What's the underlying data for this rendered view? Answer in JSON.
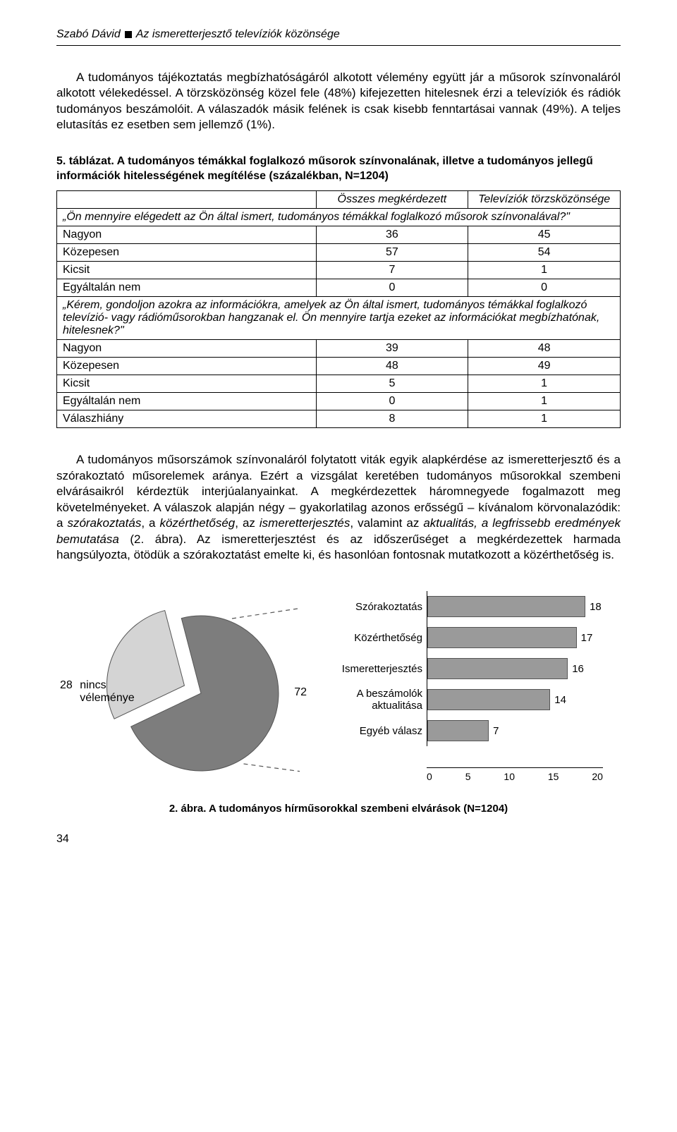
{
  "header": {
    "author": "Szabó Dávid",
    "title": "Az ismeretterjesztő televíziók közönsége"
  },
  "para1": "A tudományos tájékoztatás megbízhatóságáról alkotott vélemény együtt jár a műsorok színvonaláról alkotott vélekedéssel. A törzsközönség közel fele (48%) kifejezetten hitelesnek érzi a televíziók és rádiók tudományos beszámolóit. A válaszadók másik felének is csak kisebb fenntartásai vannak (49%). A teljes elutasítás ez esetben sem jellemző (1%).",
  "table": {
    "caption": "5. táblázat. A tudományos témákkal foglalkozó műsorok színvonalának, illetve a tudományos jellegű információk hitelességének megítélése (százalékban, N=1204)",
    "col1": "Összes megkérdezett",
    "col2": "Televíziók törzsközönsége",
    "q1": "„Ön mennyire elégedett az Ön által ismert, tudományos témákkal foglalkozó műsorok színvonalával?\"",
    "rows1": [
      {
        "label": "Nagyon",
        "a": "36",
        "b": "45"
      },
      {
        "label": "Közepesen",
        "a": "57",
        "b": "54"
      },
      {
        "label": "Kicsit",
        "a": "7",
        "b": "1"
      },
      {
        "label": "Egyáltalán nem",
        "a": "0",
        "b": "0"
      }
    ],
    "q2": "„Kérem, gondoljon azokra az információkra, amelyek az Ön által ismert, tudományos témákkal foglalkozó televízió- vagy rádióműsorokban hangzanak el. Ön mennyire tartja ezeket az információkat megbízhatónak, hitelesnek?\"",
    "rows2": [
      {
        "label": "Nagyon",
        "a": "39",
        "b": "48"
      },
      {
        "label": "Közepesen",
        "a": "48",
        "b": "49"
      },
      {
        "label": "Kicsit",
        "a": "5",
        "b": "1"
      },
      {
        "label": "Egyáltalán nem",
        "a": "0",
        "b": "1"
      },
      {
        "label": "Válaszhiány",
        "a": "8",
        "b": "1"
      }
    ]
  },
  "para2_parts": {
    "p1": "A tudományos műsorszámok színvonaláról folytatott viták egyik alapkérdése az ismeretterjesztő és a szórakoztató műsorelemek aránya. Ezért a vizsgálat keretében tudományos műsorokkal szembeni elvárásaikról kérdeztük interjúalanyainkat. A megkérdezettek háromnegyede fogalmazott meg követelményeket. A válaszok alapján négy – gyakorlatilag azonos erősségű – kívánalom körvonalazódik: a ",
    "i1": "szórakoztatás",
    "p2": ", a ",
    "i2": "közérthetőség",
    "p3": ", az ",
    "i3": "ismeretterjesztés",
    "p4": ", valamint az ",
    "i4": "aktualitás, a legfrissebb eredmények bemutatása",
    "p5": " (2. ábra). Az ismeretterjesztést és az időszerűséget a megkérdezettek harmada hangsúlyozta, ötödük a szórakoztatást emelte ki, és hasonlóan fontosnak mutatkozott a közérthetőség is."
  },
  "pie": {
    "left_value": "28",
    "left_label_1": "nincs",
    "left_label_2": "véleménye",
    "right_value": "72",
    "slice_small_pct": 28,
    "colors": {
      "large": "#7d7d7d",
      "small": "#d4d4d4",
      "stroke": "#555555"
    }
  },
  "bars": {
    "max": 20,
    "items": [
      {
        "label": "Szórakoztatás",
        "value": 18
      },
      {
        "label": "Közérthetőség",
        "value": 17
      },
      {
        "label": "Ismeretterjesztés",
        "value": 16
      },
      {
        "label": "A beszámolók aktualitása",
        "value": 14
      },
      {
        "label": "Egyéb válasz",
        "value": 7
      }
    ],
    "ticks": [
      "0",
      "5",
      "10",
      "15",
      "20"
    ],
    "bar_color": "#9a9a9a",
    "bar_border": "#555555"
  },
  "fig_caption": "2. ábra. A tudományos hírműsorokkal szembeni elvárások (N=1204)",
  "page_number": "34"
}
